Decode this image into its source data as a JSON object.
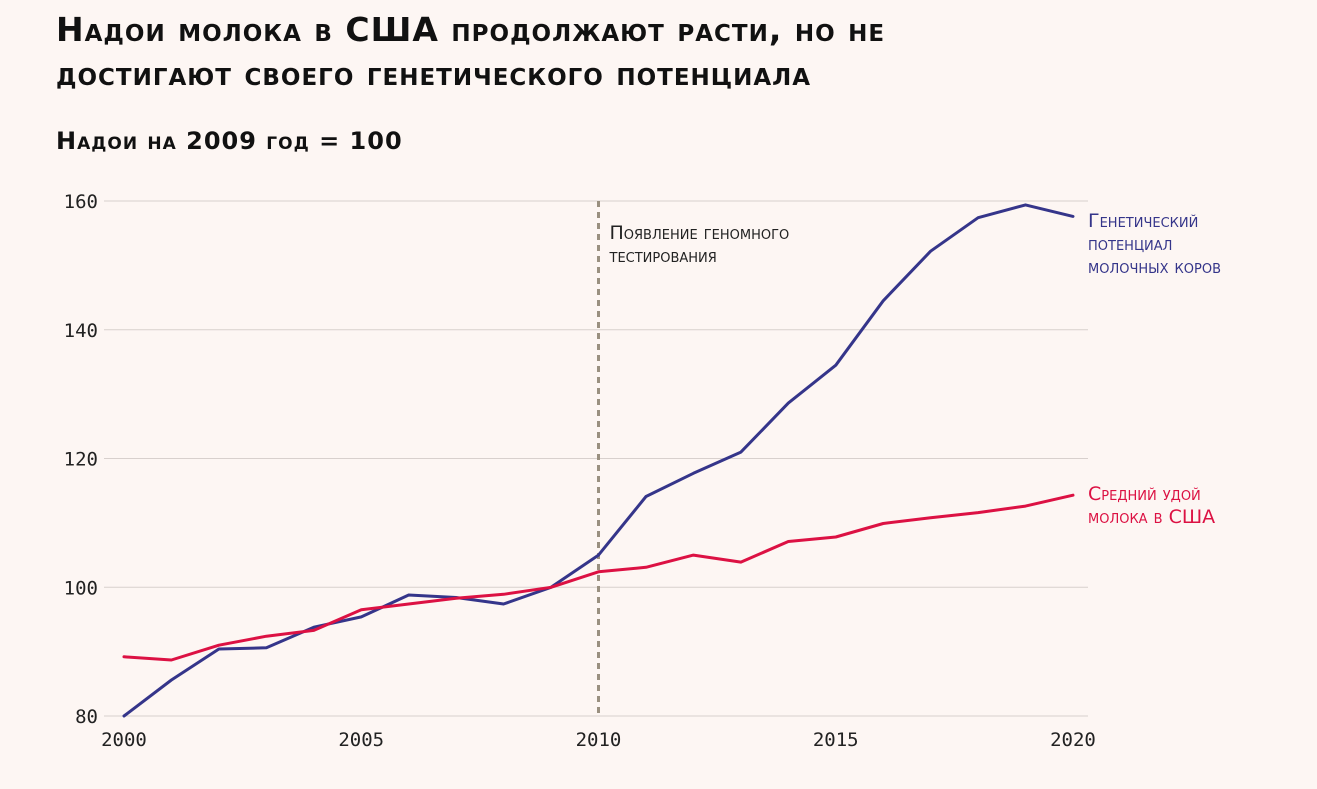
{
  "title": "Надои молока в США продолжают расти, но не достигают своего генетического потенциала",
  "subtitle": "Надои на 2009 год = 100",
  "colors": {
    "background": "#fdf6f3",
    "genetic": "#35358a",
    "milk": "#dc1143",
    "grid": "#d8d0cd",
    "annotation_line": "#9a9080",
    "text": "#222222"
  },
  "chart_data": {
    "type": "line",
    "x": [
      2000,
      2001,
      2002,
      2003,
      2004,
      2005,
      2006,
      2007,
      2008,
      2009,
      2010,
      2011,
      2012,
      2013,
      2014,
      2015,
      2016,
      2017,
      2018,
      2019,
      2020
    ],
    "series": [
      {
        "key": "genetic",
        "name_lines": [
          "Генетический",
          "потенциал",
          "молочных коров"
        ],
        "values": [
          80.0,
          85.6,
          90.4,
          90.6,
          93.8,
          95.4,
          98.8,
          98.4,
          97.4,
          100.0,
          105.0,
          114.1,
          117.7,
          121.0,
          128.6,
          134.5,
          144.5,
          152.2,
          157.4,
          159.4,
          157.6
        ]
      },
      {
        "key": "milk",
        "name_lines": [
          "Средний удой",
          "молока в США"
        ],
        "values": [
          89.2,
          88.7,
          91.0,
          92.4,
          93.3,
          96.5,
          97.4,
          98.3,
          98.9,
          100.0,
          102.4,
          103.1,
          105.0,
          103.9,
          107.1,
          107.8,
          109.9,
          110.8,
          111.6,
          112.6,
          114.3
        ]
      }
    ],
    "xlim": [
      2000,
      2020
    ],
    "ylim": [
      80,
      160
    ],
    "x_ticks": [
      2000,
      2005,
      2010,
      2015,
      2020
    ],
    "y_ticks": [
      80,
      100,
      120,
      140,
      160
    ],
    "grid": "horizontal",
    "annotation": {
      "x": 2010,
      "text_lines": [
        "Появление геномного",
        "тестирования"
      ]
    }
  }
}
